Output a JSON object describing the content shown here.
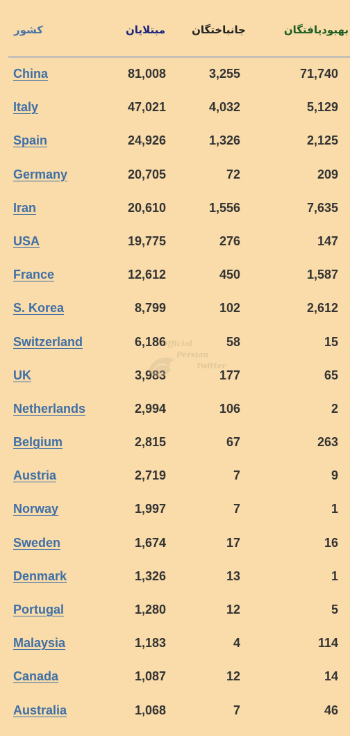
{
  "headers": {
    "country": "کشور",
    "infected": "مبتلایان",
    "deaths": "جانباختگان",
    "recovered": "بهبودیافتگان"
  },
  "colors": {
    "background": "#f9dcaa",
    "country_link": "#3f6fa6",
    "header_infected": "#1a237e",
    "header_recovered": "#1b5e20",
    "divider": "#b7b7bd"
  },
  "watermark": {
    "line1": "Official",
    "line2": "Persian",
    "line3": "Twitter",
    "icon": "bird-icon"
  },
  "rows": [
    {
      "country": "China",
      "infected": "81,008",
      "deaths": "3,255",
      "recovered": "71,740"
    },
    {
      "country": "Italy",
      "infected": "47,021",
      "deaths": "4,032",
      "recovered": "5,129"
    },
    {
      "country": "Spain",
      "infected": "24,926",
      "deaths": "1,326",
      "recovered": "2,125"
    },
    {
      "country": "Germany",
      "infected": "20,705",
      "deaths": "72",
      "recovered": "209"
    },
    {
      "country": "Iran",
      "infected": "20,610",
      "deaths": "1,556",
      "recovered": "7,635"
    },
    {
      "country": "USA",
      "infected": "19,775",
      "deaths": "276",
      "recovered": "147"
    },
    {
      "country": "France",
      "infected": "12,612",
      "deaths": "450",
      "recovered": "1,587"
    },
    {
      "country": "S. Korea",
      "infected": "8,799",
      "deaths": "102",
      "recovered": "2,612"
    },
    {
      "country": "Switzerland",
      "infected": "6,186",
      "deaths": "58",
      "recovered": "15"
    },
    {
      "country": "UK",
      "infected": "3,983",
      "deaths": "177",
      "recovered": "65"
    },
    {
      "country": "Netherlands",
      "infected": "2,994",
      "deaths": "106",
      "recovered": "2"
    },
    {
      "country": "Belgium",
      "infected": "2,815",
      "deaths": "67",
      "recovered": "263"
    },
    {
      "country": "Austria",
      "infected": "2,719",
      "deaths": "7",
      "recovered": "9"
    },
    {
      "country": "Norway",
      "infected": "1,997",
      "deaths": "7",
      "recovered": "1"
    },
    {
      "country": "Sweden",
      "infected": "1,674",
      "deaths": "17",
      "recovered": "16"
    },
    {
      "country": "Denmark",
      "infected": "1,326",
      "deaths": "13",
      "recovered": "1"
    },
    {
      "country": "Portugal",
      "infected": "1,280",
      "deaths": "12",
      "recovered": "5"
    },
    {
      "country": "Malaysia",
      "infected": "1,183",
      "deaths": "4",
      "recovered": "114"
    },
    {
      "country": "Canada",
      "infected": "1,087",
      "deaths": "12",
      "recovered": "14"
    },
    {
      "country": "Australia",
      "infected": "1,068",
      "deaths": "7",
      "recovered": "46"
    }
  ]
}
